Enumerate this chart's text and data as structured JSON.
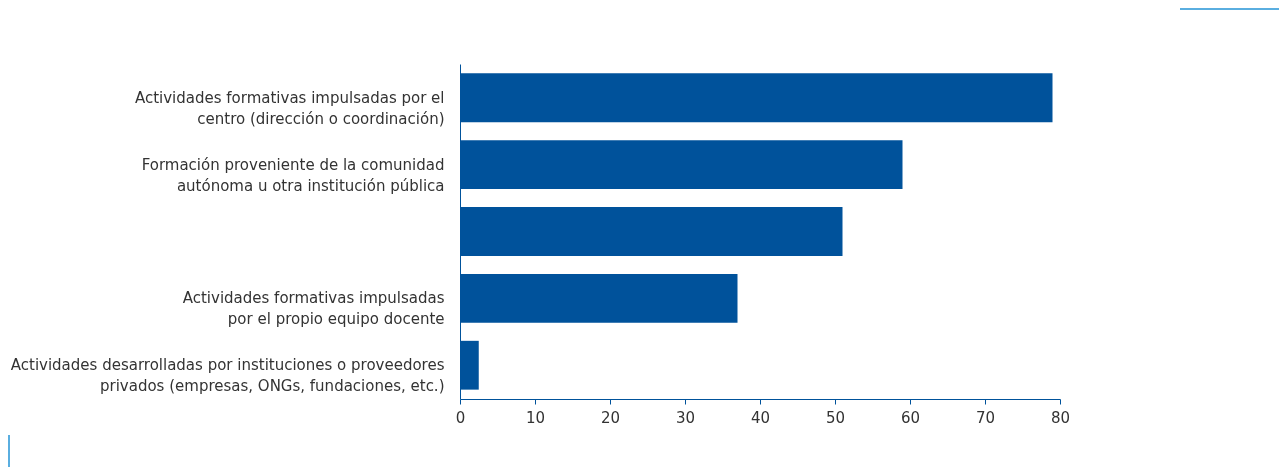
{
  "chart_data": {
    "type": "bar",
    "orientation": "horizontal",
    "categories": [
      "Actividades formativas impulsadas por el centro (dirección o coordinación)",
      "Formación proveniente de la comunidad autónoma u otra institución pública",
      null,
      "Actividades formativas impulsadas por el propio equipo docente",
      "Actividades desarrolladas por instituciones o proveedores privados (empresas, ONGs, fundaciones, etc.)"
    ],
    "values": [
      79,
      59,
      51,
      37,
      2.5
    ],
    "color": "#00529b",
    "xlim": [
      0,
      80
    ],
    "xticks": [
      0,
      10,
      20,
      30,
      40,
      50,
      60,
      70,
      80
    ],
    "grid": false
  }
}
